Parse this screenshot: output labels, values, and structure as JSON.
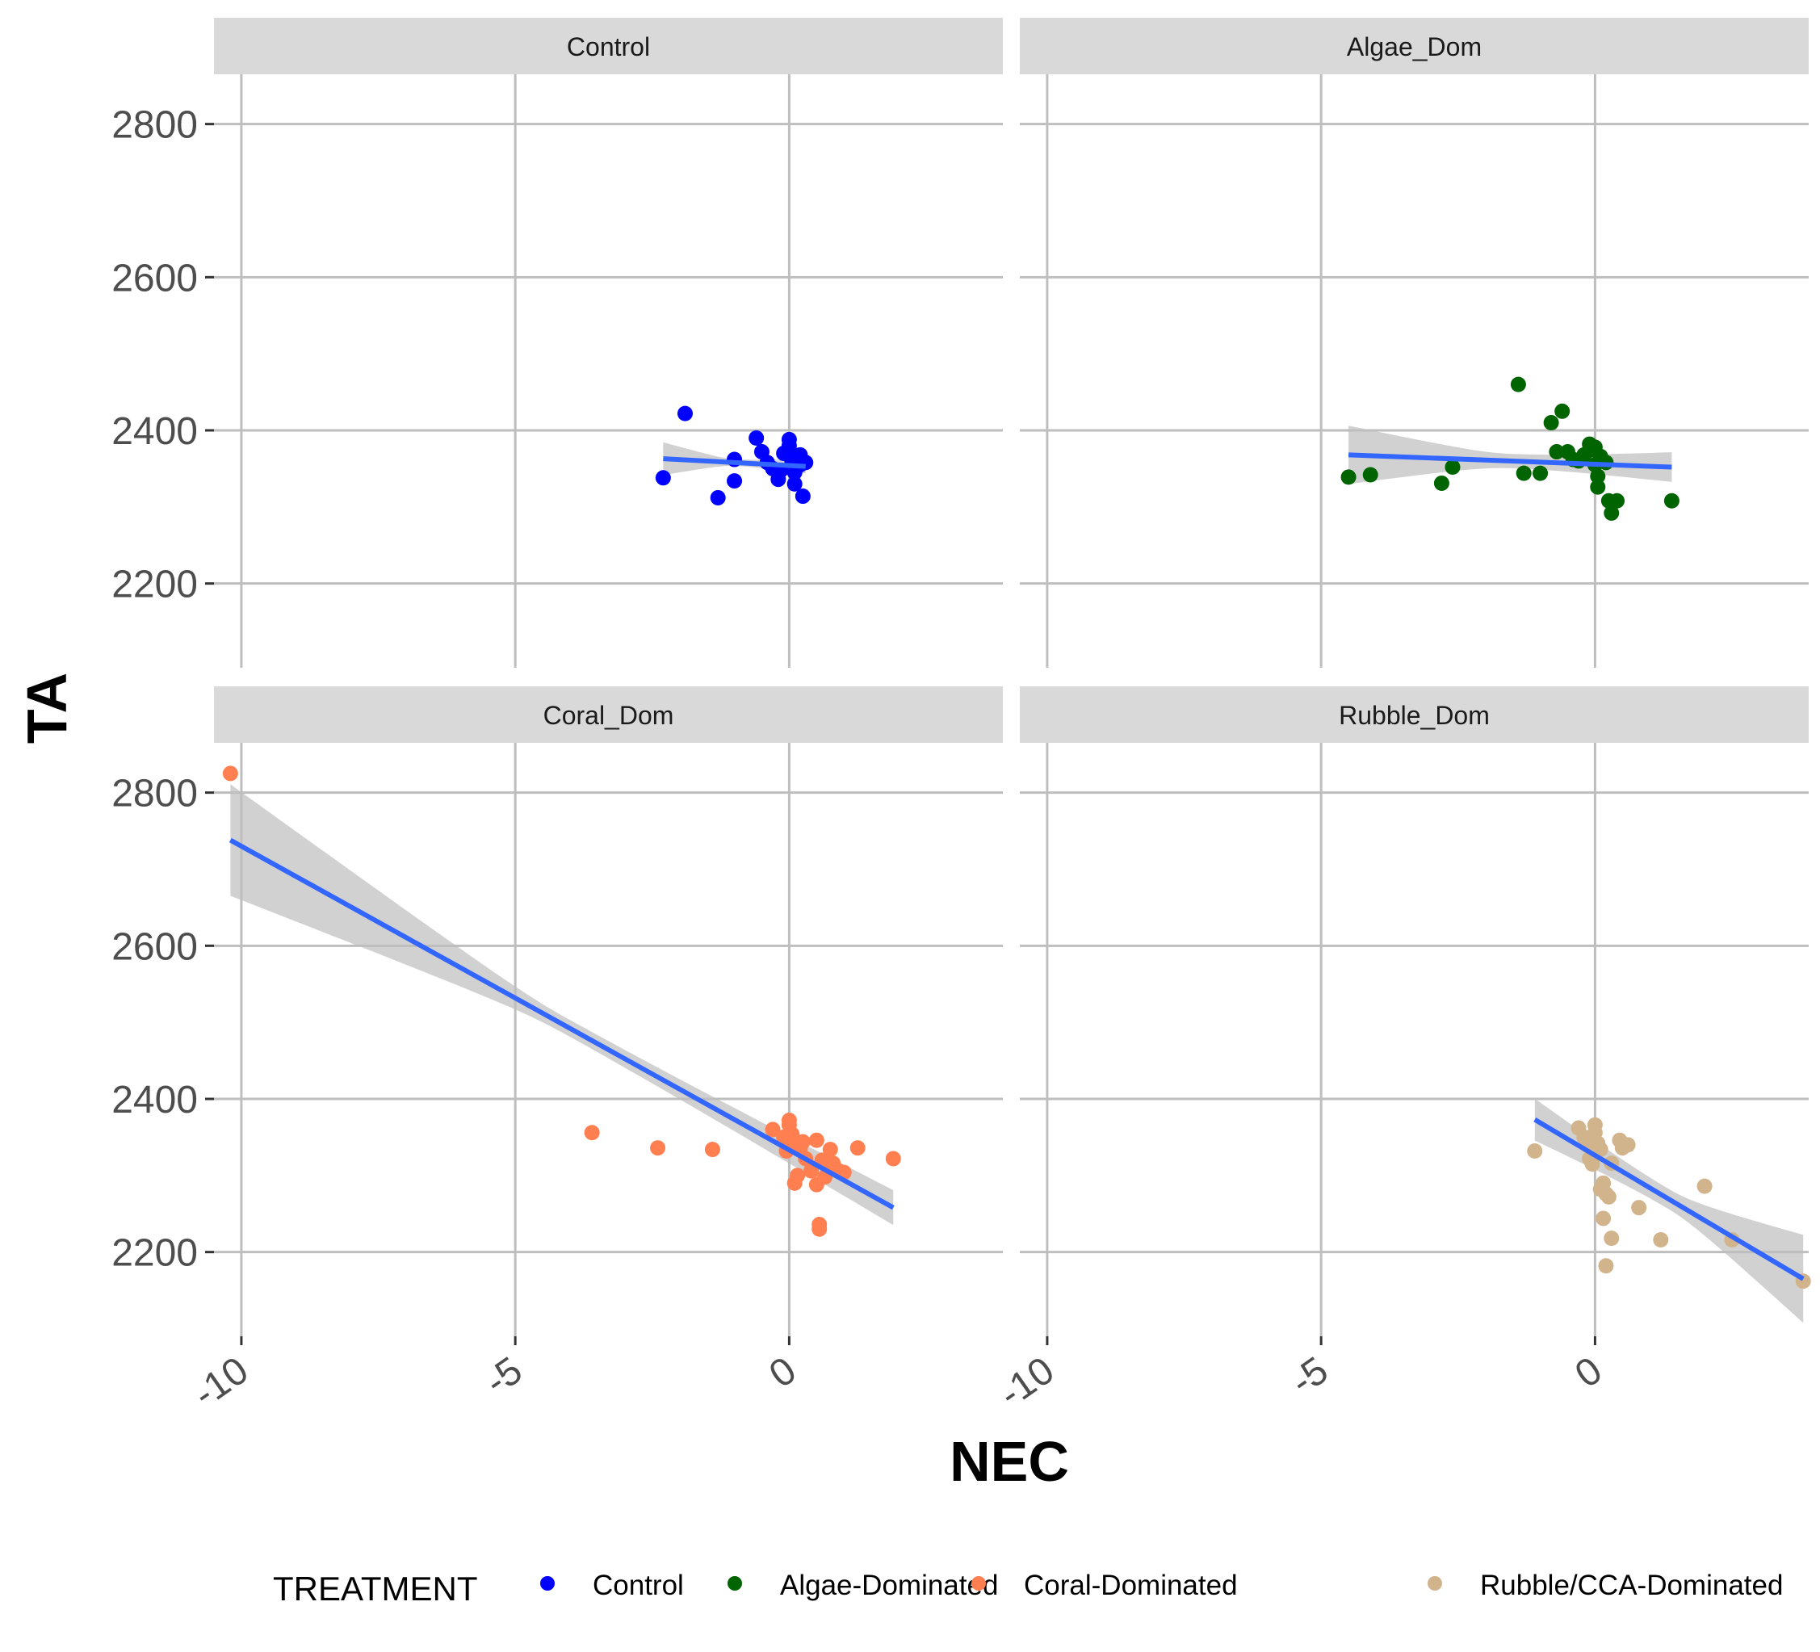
{
  "chart_data": {
    "type": "scatter",
    "facet_labels": [
      "Control",
      "Algae_Dom",
      "Coral_Dom",
      "Rubble_Dom"
    ],
    "xlabel": "NEC",
    "ylabel": "TA",
    "xlim": [
      -10.5,
      3.9
    ],
    "ylim": [
      2090,
      2865
    ],
    "x_ticks": [
      -10,
      -5,
      0
    ],
    "x_tick_labels": [
      "-10",
      "-5",
      "0"
    ],
    "y_ticks": [
      2200,
      2400,
      2600,
      2800
    ],
    "y_tick_labels": [
      "2200",
      "2400",
      "2600",
      "2800"
    ],
    "legend": {
      "title": "TREATMENT",
      "position": "bottom",
      "items": [
        {
          "label": "Control",
          "color": "#0000ff"
        },
        {
          "label": "Algae-Dominated",
          "color": "#006400"
        },
        {
          "label": "Coral-Dominated",
          "color": "#ff7f50"
        },
        {
          "label": "Rubble/CCA-Dominated",
          "color": "#d2b48c"
        }
      ]
    },
    "fit_color": "#3366ff",
    "band_color": "#bdbdbd",
    "panels": [
      {
        "facet": "Control",
        "color": "#0000ff",
        "points": [
          [
            -1.9,
            2422
          ],
          [
            -2.3,
            2338
          ],
          [
            -1.3,
            2312
          ],
          [
            -1.0,
            2334
          ],
          [
            -1.0,
            2362
          ],
          [
            -0.6,
            2390
          ],
          [
            -0.5,
            2372
          ],
          [
            -0.4,
            2358
          ],
          [
            -0.3,
            2350
          ],
          [
            -0.2,
            2336
          ],
          [
            -0.1,
            2370
          ],
          [
            0.0,
            2388
          ],
          [
            0.0,
            2380
          ],
          [
            0.05,
            2360
          ],
          [
            0.1,
            2345
          ],
          [
            0.1,
            2330
          ],
          [
            0.2,
            2355
          ],
          [
            0.2,
            2368
          ],
          [
            0.25,
            2314
          ],
          [
            0.3,
            2358
          ],
          [
            -0.15,
            2348
          ],
          [
            0.15,
            2366
          ]
        ],
        "fit": {
          "x": [
            -2.3,
            0.3
          ],
          "y": [
            2363,
            2353
          ],
          "se": [
            21,
            8
          ]
        }
      },
      {
        "facet": "Algae_Dom",
        "color": "#006400",
        "points": [
          [
            -4.5,
            2339
          ],
          [
            -4.1,
            2342
          ],
          [
            -2.8,
            2331
          ],
          [
            -2.6,
            2352
          ],
          [
            -1.4,
            2460
          ],
          [
            -1.3,
            2344
          ],
          [
            -1.0,
            2344
          ],
          [
            -0.8,
            2410
          ],
          [
            -0.7,
            2372
          ],
          [
            -0.6,
            2425
          ],
          [
            -0.5,
            2372
          ],
          [
            -0.4,
            2362
          ],
          [
            -0.3,
            2360
          ],
          [
            -0.2,
            2368
          ],
          [
            -0.1,
            2382
          ],
          [
            -0.1,
            2374
          ],
          [
            0.0,
            2378
          ],
          [
            0.0,
            2355
          ],
          [
            0.05,
            2340
          ],
          [
            0.05,
            2326
          ],
          [
            0.1,
            2366
          ],
          [
            0.15,
            2360
          ],
          [
            0.2,
            2358
          ],
          [
            0.25,
            2308
          ],
          [
            0.3,
            2292
          ],
          [
            0.4,
            2308
          ],
          [
            1.4,
            2308
          ]
        ],
        "fit": {
          "x": [
            -4.5,
            1.4
          ],
          "y": [
            2368,
            2352
          ],
          "se": [
            37,
            17
          ]
        }
      },
      {
        "facet": "Coral_Dom",
        "color": "#ff7f50",
        "points": [
          [
            -10.2,
            2825
          ],
          [
            -3.6,
            2356
          ],
          [
            -2.4,
            2336
          ],
          [
            -1.4,
            2334
          ],
          [
            -0.3,
            2360
          ],
          [
            -0.1,
            2350
          ],
          [
            -0.05,
            2332
          ],
          [
            0.0,
            2372
          ],
          [
            0.0,
            2366
          ],
          [
            0.05,
            2354
          ],
          [
            0.1,
            2340
          ],
          [
            0.1,
            2290
          ],
          [
            0.15,
            2300
          ],
          [
            0.2,
            2335
          ],
          [
            0.25,
            2344
          ],
          [
            0.3,
            2322
          ],
          [
            0.4,
            2306
          ],
          [
            0.5,
            2346
          ],
          [
            0.5,
            2288
          ],
          [
            0.55,
            2230
          ],
          [
            0.55,
            2236
          ],
          [
            0.6,
            2320
          ],
          [
            0.65,
            2298
          ],
          [
            0.7,
            2312
          ],
          [
            0.75,
            2334
          ],
          [
            0.8,
            2316
          ],
          [
            0.9,
            2306
          ],
          [
            1.0,
            2304
          ],
          [
            1.25,
            2336
          ],
          [
            1.9,
            2322
          ]
        ],
        "fit": {
          "x": [
            -10.2,
            1.9
          ],
          "y": [
            2738,
            2258
          ],
          "se": [
            72,
            20
          ]
        }
      },
      {
        "facet": "Rubble_Dom",
        "color": "#d2b48c",
        "points": [
          [
            -1.1,
            2332
          ],
          [
            -0.3,
            2362
          ],
          [
            -0.2,
            2350
          ],
          [
            -0.15,
            2340
          ],
          [
            -0.1,
            2322
          ],
          [
            -0.05,
            2315
          ],
          [
            0.0,
            2366
          ],
          [
            0.0,
            2356
          ],
          [
            0.05,
            2342
          ],
          [
            0.1,
            2334
          ],
          [
            0.1,
            2282
          ],
          [
            0.15,
            2290
          ],
          [
            0.15,
            2244
          ],
          [
            0.2,
            2182
          ],
          [
            0.2,
            2276
          ],
          [
            0.25,
            2272
          ],
          [
            0.3,
            2218
          ],
          [
            0.3,
            2316
          ],
          [
            0.45,
            2346
          ],
          [
            0.5,
            2336
          ],
          [
            0.6,
            2340
          ],
          [
            0.8,
            2258
          ],
          [
            1.2,
            2216
          ],
          [
            2.0,
            2286
          ],
          [
            2.5,
            2216
          ],
          [
            3.8,
            2162
          ]
        ],
        "fit": {
          "x": [
            -1.1,
            3.8
          ],
          "y": [
            2373,
            2165
          ],
          "se": [
            24,
            56
          ]
        }
      }
    ]
  }
}
